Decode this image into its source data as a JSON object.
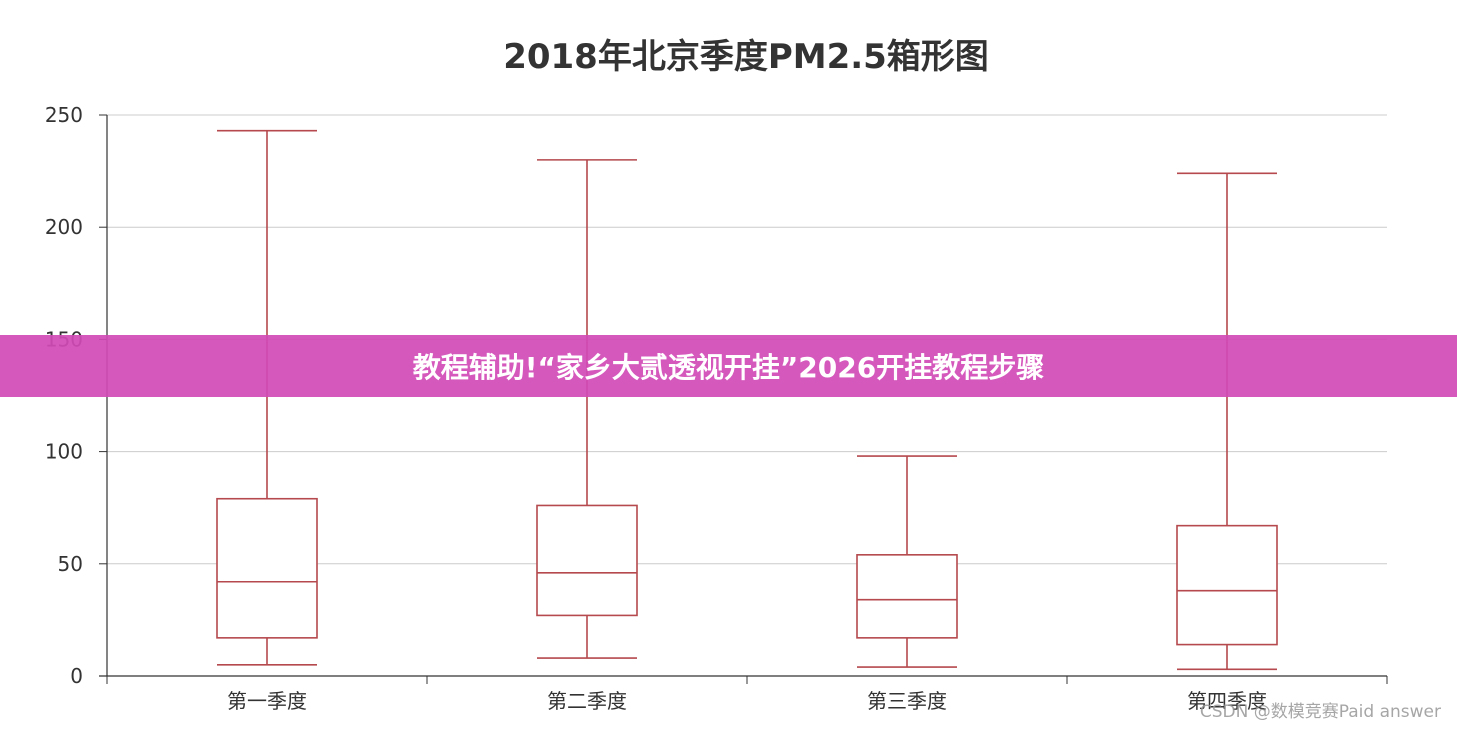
{
  "chart_data": {
    "type": "boxplot",
    "title": "2018年北京季度PM2.5箱形图",
    "categories": [
      "第一季度",
      "第二季度",
      "第三季度",
      "第四季度"
    ],
    "boxes": [
      {
        "min": 5,
        "q1": 17,
        "median": 42,
        "q3": 79,
        "max": 243
      },
      {
        "min": 8,
        "q1": 27,
        "median": 46,
        "q3": 76,
        "max": 230
      },
      {
        "min": 4,
        "q1": 17,
        "median": 34,
        "q3": 54,
        "max": 98
      },
      {
        "min": 3,
        "q1": 14,
        "median": 38,
        "q3": 67,
        "max": 224
      }
    ],
    "yticks": [
      0,
      50,
      100,
      150,
      200,
      250
    ],
    "ylim": [
      0,
      250
    ],
    "grid": true,
    "box_color": "#b5494d",
    "grid_color": "#cccccc",
    "axis_color": "#333333"
  },
  "banner": {
    "text": "教程辅助!“家乡大贰透视开挂”2026开挂教程步骤"
  },
  "watermark": {
    "text": "CSDN @数模竞赛Paid answer"
  }
}
